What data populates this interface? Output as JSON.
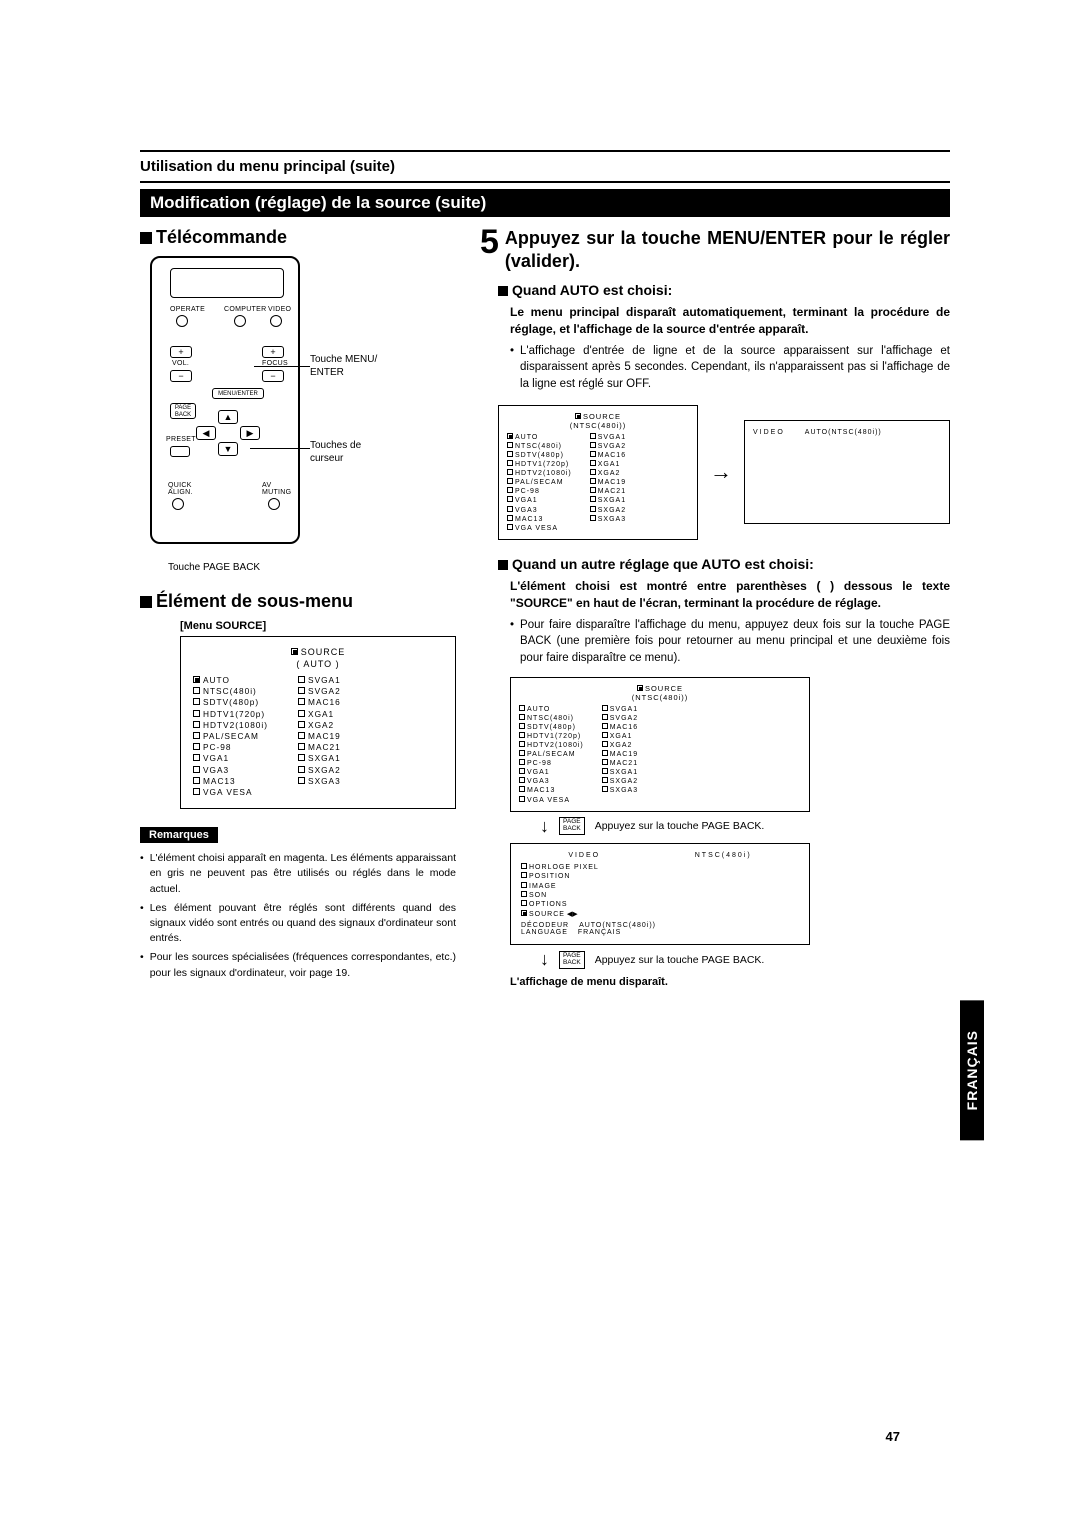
{
  "breadcrumb": "Utilisation du menu principal (suite)",
  "black_bar": "Modification (réglage) de la source (suite)",
  "left": {
    "remote_heading": "Télécommande",
    "remote_labels": {
      "operate": "OPERATE",
      "computer": "COMPUTER",
      "video": "VIDEO",
      "vol": "VOL.",
      "focus": "FOCUS",
      "menu_enter": "MENU/ENTER",
      "page_back": "PAGE\nBACK",
      "preset": "PRESET",
      "quick_align": "QUICK\nALIGN.",
      "av_muting": "AV\nMUTING",
      "out_menu": "Touche MENU/\nENTER",
      "out_cursor": "Touches de\ncurseur",
      "under": "Touche PAGE BACK"
    },
    "submenu_heading": "Élément de sous-menu",
    "menu_label": "[Menu SOURCE]",
    "source_title": "SOURCE",
    "source_subtitle": "( AUTO )",
    "source_col1": [
      "AUTO",
      "NTSC(480i)",
      "SDTV(480p)",
      "HDTV1(720p)",
      "HDTV2(1080i)",
      "PAL/SECAM",
      "PC-98",
      "VGA1",
      "VGA3",
      "MAC13",
      "VGA VESA"
    ],
    "source_col2": [
      "SVGA1",
      "SVGA2",
      "MAC16",
      "XGA1",
      "XGA2",
      "MAC19",
      "MAC21",
      "SXGA1",
      "SXGA2",
      "SXGA3"
    ],
    "source_selected_index": 0,
    "remarks_label": "Remarques",
    "remarks": [
      "L'élément choisi apparaît en magenta. Les éléments apparaissant en gris ne peuvent pas être utilisés ou réglés dans le mode actuel.",
      "Les élément pouvant être réglés sont différents quand des signaux vidéo sont entrés ou quand des signaux d'ordinateur sont entrés.",
      "Pour les sources spécialisées (fréquences correspondantes, etc.) pour les signaux d'ordinateur, voir page 19."
    ]
  },
  "right": {
    "step_num": "5",
    "step_text": "Appuyez sur la touche MENU/ENTER pour le régler (valider).",
    "cond_auto": "Quand AUTO est choisi:",
    "auto_bold": "Le menu principal disparaît automatiquement, terminant la procédure de réglage, et l'affichage de la source d'entrée apparaît.",
    "auto_bullet": "L'affichage d'entrée de ligne et de la source apparaissent sur l'affichage et disparaissent après 5 secondes. Cependant, ils n'apparaissent pas si l'affichage de la ligne est réglé sur OFF.",
    "disp_a_title": "SOURCE",
    "disp_a_sub": "(NTSC(480i))",
    "disp_a_col1": [
      "AUTO",
      "NTSC(480i)",
      "SDTV(480p)",
      "HDTV1(720p)",
      "HDTV2(1080i)",
      "PAL/SECAM",
      "PC-98",
      "VGA1",
      "VGA3",
      "MAC13",
      "VGA VESA"
    ],
    "disp_a_col2": [
      "SVGA1",
      "SVGA2",
      "MAC16",
      "XGA1",
      "XGA2",
      "MAC19",
      "MAC21",
      "SXGA1",
      "SXGA2",
      "SXGA3"
    ],
    "disp_b_line1": "VIDEO",
    "disp_b_line2": "AUTO(NTSC(480i))",
    "cond_other": "Quand un autre réglage que AUTO est choisi:",
    "other_bold": "L'élément choisi est montré entre parenthèses (  ) dessous le texte \"SOURCE\" en haut de l'écran, terminant la procédure de réglage.",
    "other_bullet": "Pour faire disparaître l'affichage du menu, appuyez deux fois sur la touche PAGE BACK (une première fois pour retourner au menu principal et une deuxième fois pour faire disparaître ce menu).",
    "disp_c_title": "SOURCE",
    "disp_c_sub": "(NTSC(480i))",
    "pb_btn": "PAGE\nBACK",
    "pb_note": "Appuyez sur la touche PAGE BACK.",
    "main_menu": {
      "header_left": "VIDEO",
      "header_right": "NTSC(480i)",
      "items": [
        "HORLOGE PIXEL",
        "POSITION",
        "IMAGE",
        "SON",
        "OPTIONS",
        "SOURCE"
      ],
      "decodeur_lbl": "DÉCODEUR",
      "decodeur_val": "AUTO(NTSC(480i))",
      "language_lbl": "LANGUAGE",
      "language_val": "FRANÇAIS"
    },
    "footer": "L'affichage de menu disparaît."
  },
  "page_number": "47",
  "lang_tab": "FRANÇAIS",
  "colors": {
    "bg": "#ffffff",
    "fg": "#000000"
  }
}
